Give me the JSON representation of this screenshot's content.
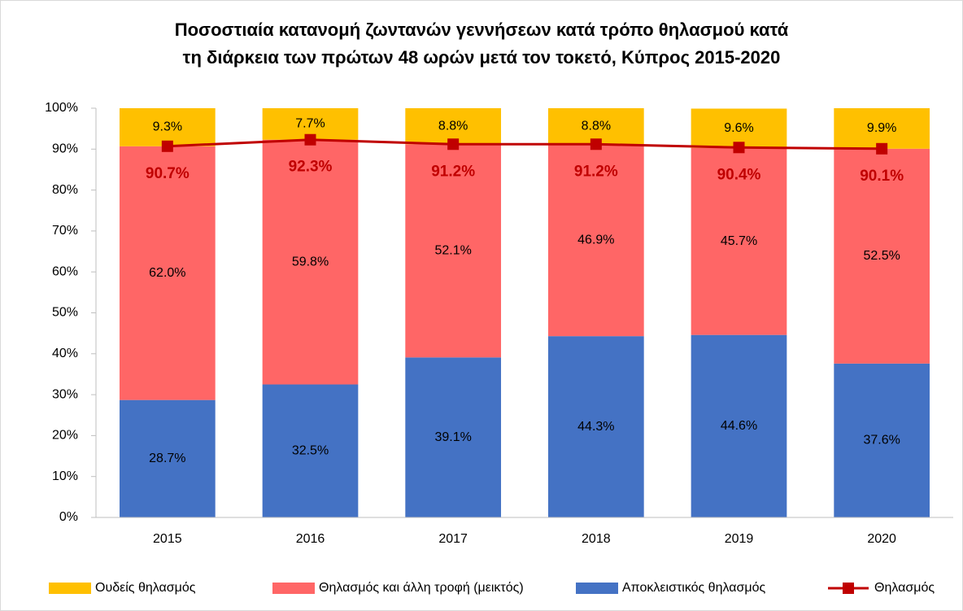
{
  "chart_data": {
    "type": "stacked-bar-line",
    "title": [
      "Ποσοστιαία κατανομή ζωντανών γεννήσεων κατά τρόπο θηλασμού κατά",
      "τη διάρκεια των πρώτων 48 ωρών μετά τον τοκετό, Κύπρος 2015-2020"
    ],
    "categories": [
      "2015",
      "2016",
      "2017",
      "2018",
      "2019",
      "2020"
    ],
    "series": [
      {
        "name": "Ουδείς θηλασμός",
        "color": "#ffc000",
        "type": "bar",
        "values": [
          9.3,
          7.7,
          8.8,
          8.8,
          9.6,
          9.9
        ],
        "value_labels": [
          "9.3%",
          "7.7%",
          "8.8%",
          "8.8%",
          "9.6%",
          "9.9%"
        ]
      },
      {
        "name": "Θηλασμός και άλλη τροφή (μεικτός)",
        "color": "#ff6666",
        "type": "bar",
        "values": [
          62.0,
          59.8,
          52.1,
          46.9,
          45.7,
          52.5
        ],
        "value_labels": [
          "62.0%",
          "59.8%",
          "52.1%",
          "46.9%",
          "45.7%",
          "52.5%"
        ]
      },
      {
        "name": "Αποκλειστικός θηλασμός",
        "color": "#4472c4",
        "type": "bar",
        "values": [
          28.7,
          32.5,
          39.1,
          44.3,
          44.6,
          37.6
        ],
        "value_labels": [
          "28.7%",
          "32.5%",
          "39.1%",
          "44.3%",
          "44.6%",
          "37.6%"
        ]
      },
      {
        "name": "Θηλασμός",
        "color": "#c00000",
        "type": "line",
        "values": [
          90.7,
          92.3,
          91.2,
          91.2,
          90.4,
          90.1
        ],
        "value_labels": [
          "90.7%",
          "92.3%",
          "91.2%",
          "91.2%",
          "90.4%",
          "90.1%"
        ]
      }
    ],
    "ylim": [
      0,
      100
    ],
    "yticks": [
      {
        "value": 0,
        "label": "0%"
      },
      {
        "value": 10,
        "label": "10%"
      },
      {
        "value": 20,
        "label": "20%"
      },
      {
        "value": 30,
        "label": "30%"
      },
      {
        "value": 40,
        "label": "40%"
      },
      {
        "value": 50,
        "label": "50%"
      },
      {
        "value": 60,
        "label": "60%"
      },
      {
        "value": 70,
        "label": "70%"
      },
      {
        "value": 80,
        "label": "80%"
      },
      {
        "value": 90,
        "label": "90%"
      },
      {
        "value": 100,
        "label": "100%"
      }
    ],
    "legend": "bottom"
  }
}
